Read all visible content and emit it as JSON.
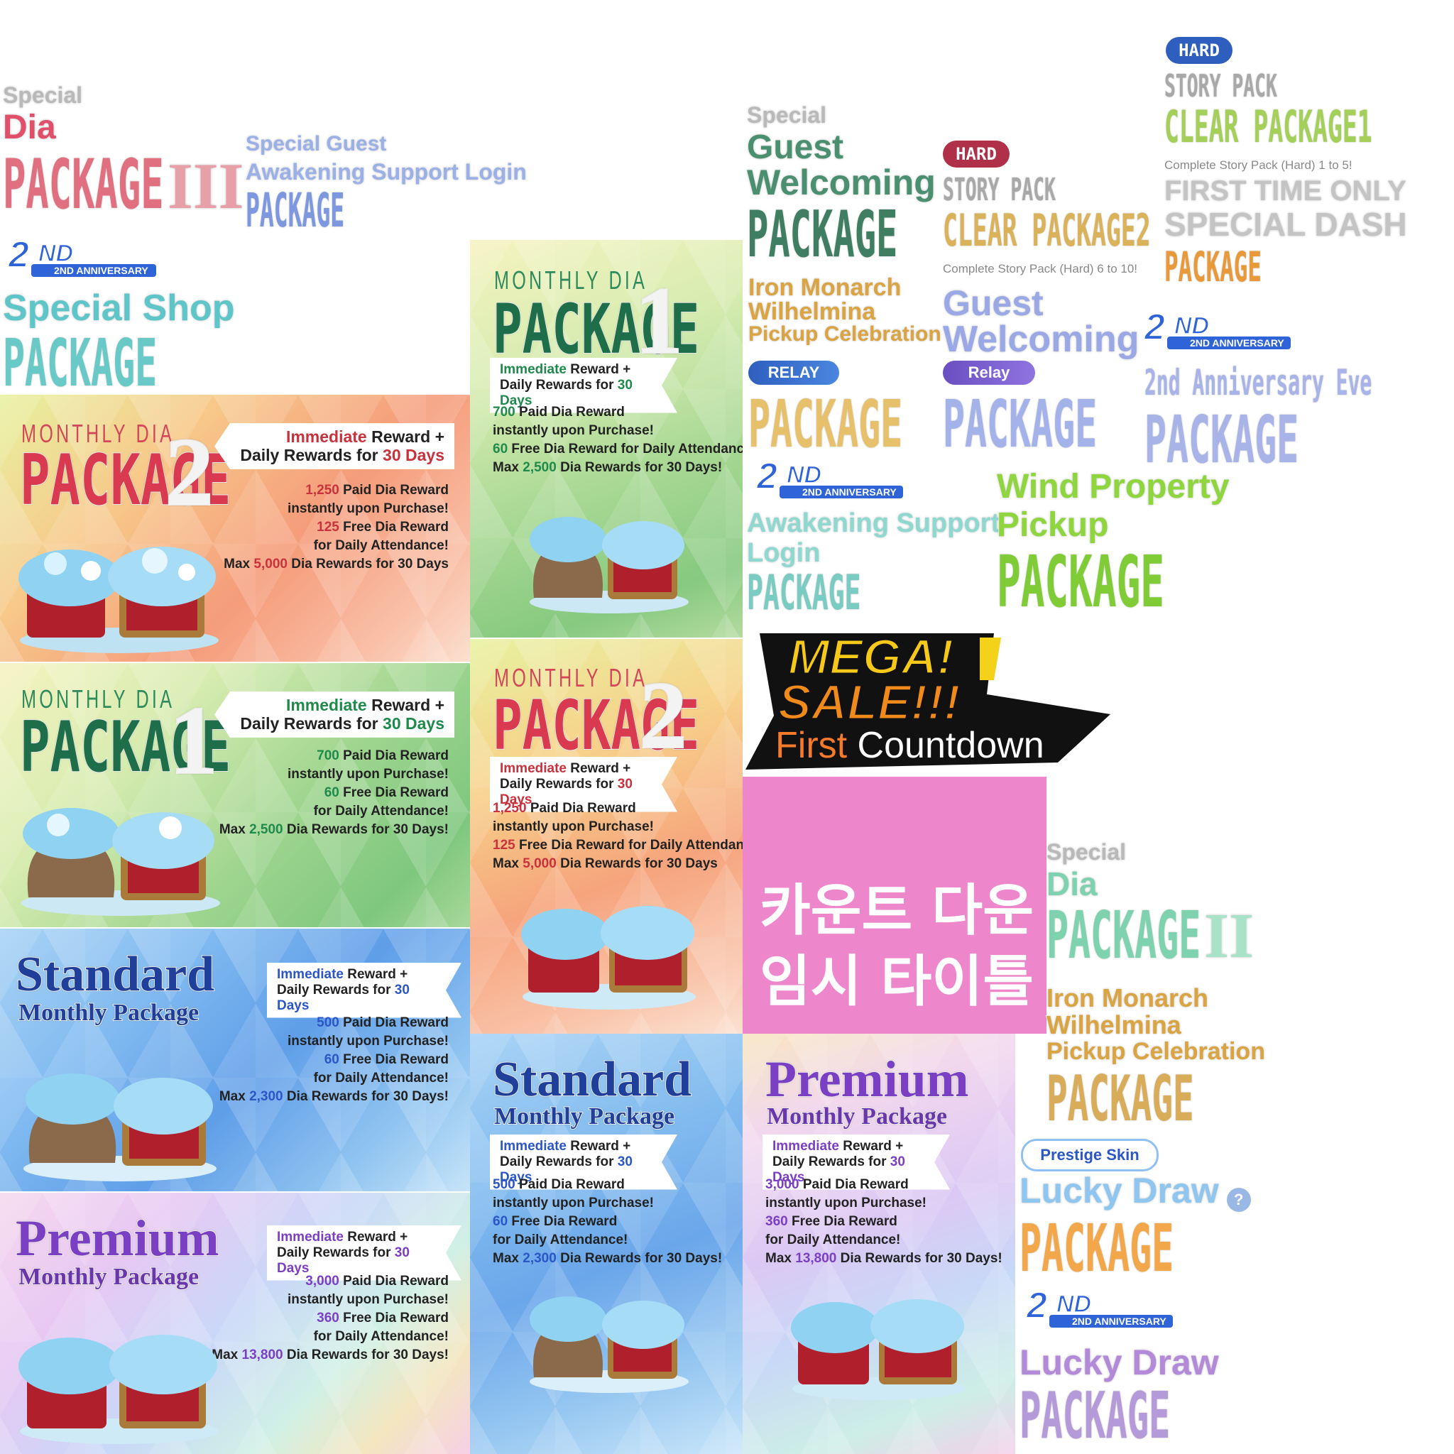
{
  "colors": {
    "red": "#c8323c",
    "green": "#1f8a4c",
    "blue": "#2a56c6",
    "purple": "#7b3fc4",
    "gold": "#d9a441",
    "pink_block": "#ee86cc"
  },
  "icons": [
    "diamond-chest-icon",
    "anniversary-2nd-logo",
    "question-icon"
  ],
  "sheet": {
    "special_dia_3": {
      "l1": "Special",
      "l2": "Dia",
      "l3": "PACKAGE",
      "num": "III"
    },
    "guest_awakening": {
      "l1": "Special Guest",
      "l2": "Awakening Support Login",
      "l3": "PACKAGE"
    },
    "anniv_logo_text": "2ND ANNIVERSARY",
    "special_shop": {
      "l1": "Special Shop",
      "l2": "PACKAGE"
    },
    "guest_welcoming": {
      "l1": "Special",
      "l2": "Guest",
      "l3": "Welcoming",
      "l4": "PACKAGE"
    },
    "hard_badge": "HARD",
    "story_clear_2": {
      "l1": "STORY PACK",
      "l2": "CLEAR PACKAGE2",
      "l3": "Complete Story Pack (Hard) 6 to 10!"
    },
    "story_clear_1": {
      "l1": "STORY PACK",
      "l2": "CLEAR PACKAGE1",
      "l3": "Complete Story Pack (Hard) 1 to 5!",
      "l4": "FIRST TIME ONLY",
      "l5": "SPECIAL DASH",
      "l6": "PACKAGE"
    },
    "iron_relay": {
      "l1": "Iron Monarch",
      "l2": "Wilhelmina",
      "l3": "Pickup Celebration",
      "badge": "RELAY",
      "l4": "PACKAGE"
    },
    "guest_relay": {
      "l1": "Guest",
      "l2": "Welcoming",
      "badge": "Relay",
      "l3": "PACKAGE"
    },
    "anniv_eve": {
      "l1": "2nd Anniversary Eve",
      "l2": "PACKAGE"
    },
    "awakening_login": {
      "l1": "Awakening Support",
      "l2": "Login",
      "l3": "PACKAGE"
    },
    "wind": {
      "l1": "Wind Property",
      "l2": "Pickup",
      "l3": "PACKAGE"
    },
    "mega": {
      "l1": "MEGA!",
      "l2": "SALE!!!",
      "l3a": "First",
      "l3b": "Countdown"
    },
    "korean": {
      "l1": "카운트 다운",
      "l2": "임시 타이틀"
    },
    "special_dia_2": {
      "l1": "Special",
      "l2": "Dia",
      "l3": "PACKAGE",
      "num": "II"
    },
    "iron_gold": {
      "l1": "Iron Monarch",
      "l2": "Wilhelmina",
      "l3": "Pickup Celebration",
      "l4": "PACKAGE"
    },
    "prestige": {
      "badge": "Prestige Skin",
      "l1": "Lucky Draw",
      "l2": "PACKAGE"
    },
    "lucky_purple": {
      "l1": "Lucky Draw",
      "l2": "PACKAGE"
    }
  },
  "banners": {
    "m2_left": {
      "t1": "MONTHLY DIA",
      "t2": "PACKAGE",
      "num": "2",
      "tag_a": "Immediate",
      "tag_b": " Reward +",
      "tag_c": "Daily Rewards for ",
      "tag_d": "30 Days",
      "d1a": "1,250",
      "d1b": " Paid Dia Reward",
      "d2": "instantly upon Purchase!",
      "d3a": "125",
      "d3b": " Free Dia Reward",
      "d4": "for Daily Attendance!",
      "d5a": "Max ",
      "d5b": "5,000",
      "d5c": " Dia Rewards for 30 Days"
    },
    "m1_left": {
      "t1": "MONTHLY DIA",
      "t2": "PACKAGE",
      "num": "1",
      "tag_a": "Immediate",
      "tag_b": " Reward +",
      "tag_c": "Daily Rewards for ",
      "tag_d": "30 Days",
      "d1a": "700",
      "d1b": " Paid Dia Reward",
      "d2": "instantly upon Purchase!",
      "d3a": "60",
      "d3b": " Free Dia Reward",
      "d4": "for Daily Attendance!",
      "d5a": "Max ",
      "d5b": "2,500",
      "d5c": " Dia Rewards for 30 Days!"
    },
    "std_left": {
      "t1": "Standard",
      "t2": "Monthly Package",
      "tag_a": "Immediate",
      "tag_b": " Reward +",
      "tag_c": "Daily Rewards for ",
      "tag_d": "30 Days",
      "d1a": "500",
      "d1b": " Paid Dia Reward",
      "d2": "instantly upon Purchase!",
      "d3a": "60",
      "d3b": " Free Dia Reward",
      "d4": "for Daily Attendance!",
      "d5a": "Max ",
      "d5b": "2,300",
      "d5c": " Dia Rewards for 30 Days!"
    },
    "prem_left": {
      "t1": "Premium",
      "t2": "Monthly Package",
      "tag_a": "Immediate",
      "tag_b": " Reward +",
      "tag_c": "Daily Rewards for ",
      "tag_d": "30 Days",
      "d1a": "3,000",
      "d1b": " Paid Dia Reward",
      "d2": "instantly upon Purchase!",
      "d3a": "360",
      "d3b": " Free Dia Reward",
      "d4": "for Daily Attendance!",
      "d5a": "Max ",
      "d5b": "13,800",
      "d5c": " Dia Rewards for 30 Days!"
    },
    "m1_mid": {
      "t1": "MONTHLY DIA",
      "t2": "PACKAGE",
      "num": "1",
      "tag_a": "Immediate",
      "tag_b": " Reward +",
      "tag_c": "Daily Rewards for ",
      "tag_d": "30 Days",
      "d1a": "700",
      "d1b": " Paid Dia Reward",
      "d2": "instantly upon Purchase!",
      "d3a": "60",
      "d3b": " Free Dia Reward for Daily Attendance!",
      "d5a": "Max ",
      "d5b": "2,500",
      "d5c": " Dia Rewards for 30 Days!"
    },
    "m2_mid": {
      "t1": "MONTHLY DIA",
      "t2": "PACKAGE",
      "num": "2",
      "tag_a": "Immediate",
      "tag_b": " Reward +",
      "tag_c": "Daily Rewards for ",
      "tag_d": "30 Days",
      "d1a": "1,250",
      "d1b": " Paid Dia Reward",
      "d2": "instantly upon Purchase!",
      "d3a": "125",
      "d3b": " Free Dia Reward for Daily Attendance!",
      "d5a": "Max ",
      "d5b": "5,000",
      "d5c": " Dia Rewards for 30 Days"
    },
    "std_mid": {
      "t1": "Standard",
      "t2": "Monthly Package",
      "tag_a": "Immediate",
      "tag_b": " Reward +",
      "tag_c": "Daily Rewards for ",
      "tag_d": "30 Days",
      "d1a": "500",
      "d1b": " Paid Dia Reward",
      "d2": "instantly upon Purchase!",
      "d3a": "60",
      "d3b": " Free Dia Reward",
      "d4": "for Daily Attendance!",
      "d5a": "Max ",
      "d5b": "2,300",
      "d5c": " Dia Rewards for 30 Days!"
    },
    "prem_mid": {
      "t1": "Premium",
      "t2": "Monthly Package",
      "tag_a": "Immediate",
      "tag_b": " Reward +",
      "tag_c": "Daily Rewards for ",
      "tag_d": "30 Days",
      "d1a": "3,000",
      "d1b": " Paid Dia Reward",
      "d2": "instantly upon Purchase!",
      "d3a": "360",
      "d3b": " Free Dia Reward",
      "d4": "for Daily Attendance!",
      "d5a": "Max ",
      "d5b": "13,800",
      "d5c": " Dia Rewards for 30 Days!"
    }
  }
}
